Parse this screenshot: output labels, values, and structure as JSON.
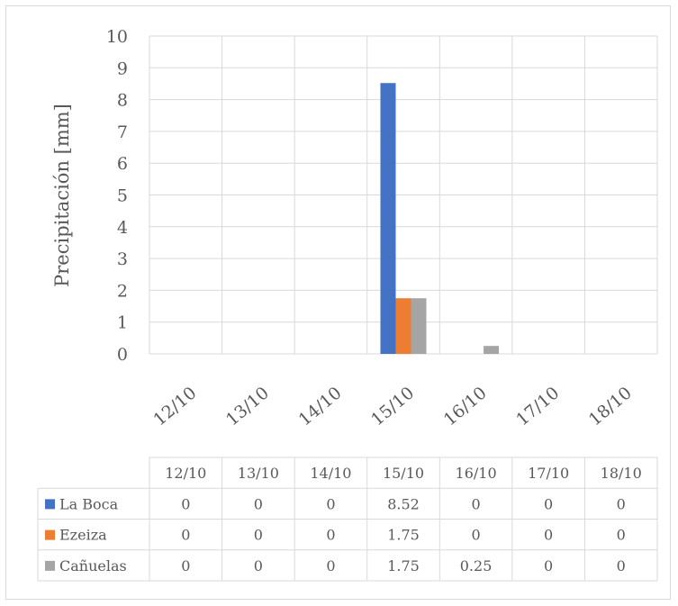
{
  "chart_data": {
    "type": "bar",
    "title": "",
    "xlabel": "",
    "ylabel": "Precipitación [mm]",
    "ylim": [
      0,
      10
    ],
    "yticks": [
      0,
      1,
      2,
      3,
      4,
      5,
      6,
      7,
      8,
      9,
      10
    ],
    "grid": true,
    "legend": "data-table",
    "categories": [
      "12/10",
      "13/10",
      "14/10",
      "15/10",
      "16/10",
      "17/10",
      "18/10"
    ],
    "series": [
      {
        "name": "La Boca",
        "color": "#4472c4",
        "values": [
          0,
          0,
          0,
          8.52,
          0,
          0,
          0
        ]
      },
      {
        "name": "Ezeiza",
        "color": "#ed7d31",
        "values": [
          0,
          0,
          0,
          1.75,
          0,
          0,
          0
        ]
      },
      {
        "name": "Cañuelas",
        "color": "#a5a5a5",
        "values": [
          0,
          0,
          0,
          1.75,
          0.25,
          0,
          0
        ]
      }
    ]
  }
}
